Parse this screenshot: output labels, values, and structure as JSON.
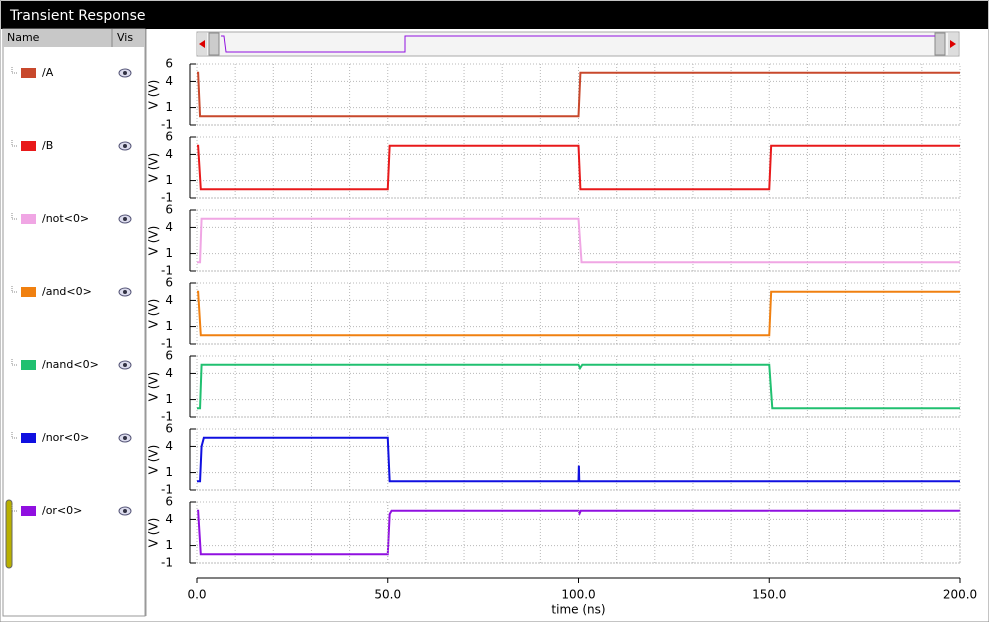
{
  "window": {
    "title": "Transient Response"
  },
  "signal_list": {
    "columns": [
      "Name",
      "Vis"
    ]
  },
  "chart_data": [
    {
      "type": "line",
      "ylabel": "V (V)",
      "ylim": [
        -1,
        6
      ],
      "yticks": [
        6,
        4,
        1,
        -1
      ],
      "xlim": [
        0,
        200
      ],
      "grid": true,
      "x": [
        0,
        0.3,
        0.8,
        100,
        100.5,
        200
      ],
      "series": [
        {
          "name": "/A",
          "color": "#c8482c",
          "values": [
            5,
            5,
            0,
            0,
            5,
            5
          ]
        }
      ]
    },
    {
      "type": "line",
      "ylabel": "V (V)",
      "ylim": [
        -1,
        6
      ],
      "yticks": [
        6,
        4,
        1,
        -1
      ],
      "xlim": [
        0,
        200
      ],
      "grid": true,
      "x": [
        0,
        0.3,
        1,
        50,
        50.5,
        100,
        100.5,
        150,
        150.5,
        200
      ],
      "series": [
        {
          "name": "/B",
          "color": "#e8191a",
          "values": [
            5,
            5,
            0,
            0,
            5,
            5,
            0,
            0,
            5,
            5
          ]
        }
      ]
    },
    {
      "type": "line",
      "ylabel": "V (V)",
      "ylim": [
        -1,
        6
      ],
      "yticks": [
        6,
        4,
        1,
        -1
      ],
      "xlim": [
        0,
        200
      ],
      "grid": true,
      "x": [
        0,
        0.8,
        1.2,
        100,
        100.8,
        200
      ],
      "series": [
        {
          "name": "/not<0>",
          "color": "#f0a6e4",
          "values": [
            0,
            0,
            5,
            5,
            0,
            0
          ]
        }
      ]
    },
    {
      "type": "line",
      "ylabel": "V (V)",
      "ylim": [
        -1,
        6
      ],
      "yticks": [
        6,
        4,
        1,
        -1
      ],
      "xlim": [
        0,
        200
      ],
      "grid": true,
      "x": [
        0,
        0.3,
        1,
        150,
        150.5,
        200
      ],
      "series": [
        {
          "name": "/and<0>",
          "color": "#f08010",
          "values": [
            5,
            5,
            0,
            0,
            5,
            5
          ]
        }
      ]
    },
    {
      "type": "line",
      "ylabel": "V (V)",
      "ylim": [
        -1,
        6
      ],
      "yticks": [
        6,
        4,
        1,
        -1
      ],
      "xlim": [
        0,
        200
      ],
      "grid": true,
      "x": [
        0,
        0.8,
        1.2,
        100,
        100.4,
        101,
        150,
        150.8,
        200
      ],
      "series": [
        {
          "name": "/nand<0>",
          "color": "#20c070",
          "values": [
            0,
            0,
            5,
            5,
            4.6,
            5,
            5,
            0,
            0
          ]
        }
      ]
    },
    {
      "type": "line",
      "ylabel": "V (V)",
      "ylim": [
        -1,
        6
      ],
      "yticks": [
        6,
        4,
        1,
        -1
      ],
      "xlim": [
        0,
        200
      ],
      "grid": true,
      "x": [
        0,
        0.8,
        1.2,
        1.8,
        50,
        50.5,
        100,
        100.1,
        100.2,
        200
      ],
      "series": [
        {
          "name": "/nor<0>",
          "color": "#1010e0",
          "values": [
            0,
            0,
            4,
            5,
            5,
            0,
            0,
            1.8,
            0,
            0
          ]
        }
      ]
    },
    {
      "type": "line",
      "ylabel": "V (V)",
      "ylim": [
        -1,
        6
      ],
      "yticks": [
        6,
        4,
        1,
        -1
      ],
      "xlim": [
        0,
        200
      ],
      "grid": true,
      "x": [
        0,
        0.3,
        1,
        50,
        50.5,
        51,
        100,
        100.3,
        100.6,
        200
      ],
      "series": [
        {
          "name": "/or<0>",
          "color": "#9010e0",
          "values": [
            5,
            5,
            0,
            0,
            4.6,
            5,
            5,
            4.7,
            5,
            5
          ]
        }
      ],
      "xlabel": "time (ns)",
      "xticks": [
        {
          "value": 0,
          "label": "0.0"
        },
        {
          "value": 50,
          "label": "50.0"
        },
        {
          "value": 100,
          "label": "100.0"
        },
        {
          "value": 150,
          "label": "150.0"
        },
        {
          "value": 200,
          "label": "200.0"
        }
      ]
    }
  ]
}
